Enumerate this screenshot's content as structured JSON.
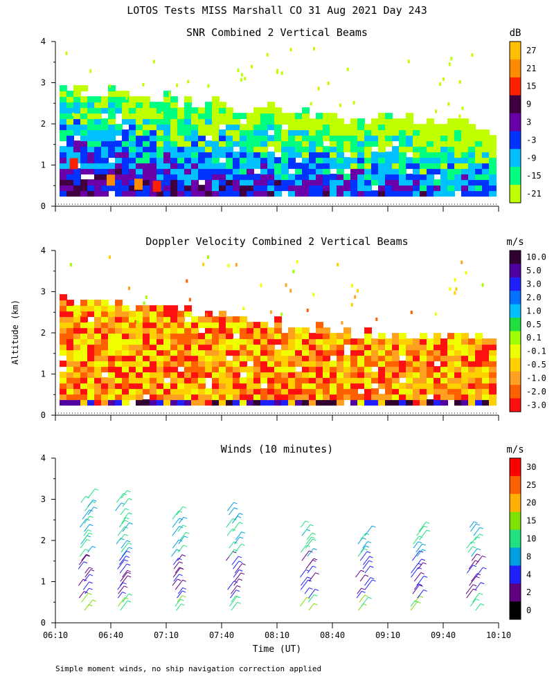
{
  "figure": {
    "title": "LOTOS Tests MISS Marshall CO  31 Aug 2021 Day 243",
    "footnote": "Simple moment winds, no ship navigation correction applied",
    "ylabel": "Altitude (km)",
    "xlabel": "Time (UT)"
  },
  "chart_data": [
    {
      "type": "heatmap",
      "title": "SNR Combined 2 Vertical Beams",
      "unit": "dB",
      "x_ticks": [
        "06:10",
        "06:40",
        "07:10",
        "07:40",
        "08:10",
        "08:40",
        "09:10",
        "09:40",
        "10:10"
      ],
      "y_ticks": [
        "0",
        "1",
        "2",
        "3",
        "4"
      ],
      "ylim": [
        0,
        4
      ],
      "colorbar": {
        "labels": [
          "27",
          "21",
          "15",
          "9",
          "3",
          "-3",
          "-9",
          "-15",
          "-21"
        ],
        "colors": [
          "#ffbf00",
          "#ff8c00",
          "#ff2000",
          "#400040",
          "#6a00a8",
          "#0033ff",
          "#00c0ff",
          "#00ff80",
          "#c0ff00"
        ]
      },
      "cloud_top_km": [
        2.9,
        2.85,
        2.8,
        2.75,
        2.6,
        2.55,
        2.5,
        2.45,
        2.4,
        2.3,
        2.25,
        2.2,
        2.15,
        2.1,
        2.05,
        2.0
      ],
      "base_km": 0.25,
      "overlay": [
        {
          "time": "06:20",
          "alt_km": 1.0,
          "color": "#ff2000"
        },
        {
          "time": "06:40",
          "alt_km": 0.6,
          "color": "#ff8c00"
        },
        {
          "time": "06:55",
          "alt_km": 0.5,
          "color": "#ff8c00"
        },
        {
          "time": "07:05",
          "alt_km": 0.45,
          "color": "#ff2000"
        }
      ]
    },
    {
      "type": "heatmap",
      "title": "Doppler Velocity Combined 2 Vertical Beams",
      "unit": "m/s",
      "x_ticks": [
        "06:10",
        "06:40",
        "07:10",
        "07:40",
        "08:10",
        "08:40",
        "09:10",
        "09:40",
        "10:10"
      ],
      "y_ticks": [
        "0",
        "1",
        "2",
        "3",
        "4"
      ],
      "ylim": [
        0,
        4
      ],
      "colorbar": {
        "labels": [
          "10.0",
          "5.0",
          "3.0",
          "2.0",
          "1.0",
          "0.5",
          "0.1",
          "-0.1",
          "-0.5",
          "-1.0",
          "-2.0",
          "-3.0"
        ],
        "colors": [
          "#300030",
          "#5000a0",
          "#2020ff",
          "#0070ff",
          "#00c0ff",
          "#20e040",
          "#a0ff00",
          "#f0ff00",
          "#ffd000",
          "#ffa020",
          "#ff6000",
          "#ff1010"
        ]
      },
      "cloud_top_km": [
        2.85,
        2.8,
        2.75,
        2.7,
        2.6,
        2.5,
        2.4,
        2.3,
        2.25,
        2.2,
        2.1,
        2.05,
        2.0,
        2.0,
        2.0,
        2.0
      ],
      "base_km": 0.25
    },
    {
      "type": "scatter",
      "title": "Winds (10 minutes)",
      "unit": "m/s",
      "x_ticks": [
        "06:10",
        "06:40",
        "07:10",
        "07:40",
        "08:10",
        "08:40",
        "09:10",
        "09:40",
        "10:10"
      ],
      "y_ticks": [
        "0",
        "1",
        "2",
        "3",
        "4"
      ],
      "ylim": [
        0,
        4
      ],
      "colorbar": {
        "labels": [
          "30",
          "25",
          "20",
          "15",
          "10",
          "8",
          "4",
          "2",
          "0"
        ],
        "colors": [
          "#ff0000",
          "#ff6000",
          "#ffb000",
          "#80e000",
          "#20e080",
          "#00a0e0",
          "#2020ff",
          "#600080",
          "#000000"
        ]
      },
      "profiles": [
        {
          "time": "06:25",
          "top_km": 3.1
        },
        {
          "time": "06:45",
          "top_km": 3.1
        },
        {
          "time": "07:15",
          "top_km": 2.7
        },
        {
          "time": "07:45",
          "top_km": 2.8
        },
        {
          "time": "08:25",
          "top_km": 2.4
        },
        {
          "time": "08:55",
          "top_km": 2.15
        },
        {
          "time": "09:25",
          "top_km": 2.3
        },
        {
          "time": "09:55",
          "top_km": 2.4
        }
      ]
    }
  ]
}
